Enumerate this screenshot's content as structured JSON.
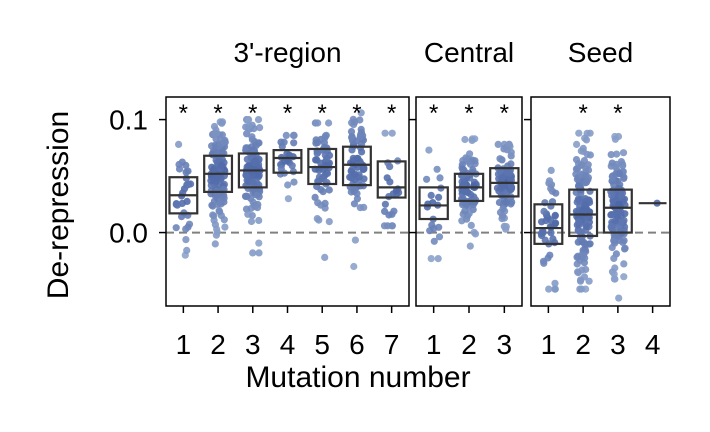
{
  "chart_data": {
    "type": "box-strip",
    "ylabel": "De-repression",
    "xlabel": "Mutation number",
    "ylim": [
      -0.065,
      0.12
    ],
    "y_ticks": [
      {
        "value": 0.0,
        "label": "0.0"
      },
      {
        "value": 0.1,
        "label": "0.1"
      }
    ],
    "reference_line": 0.0,
    "significance_marker": "*",
    "colors": {
      "point": "#4a64a6",
      "point_light": "#8ea4cc",
      "box": "#333333",
      "ref_line": "#808080"
    },
    "panels": [
      {
        "title": "3'-region",
        "groups": [
          {
            "label": "1",
            "n": 30,
            "q1": 0.017,
            "median": 0.033,
            "q3": 0.049,
            "min": -0.02,
            "max": 0.078,
            "significant": true
          },
          {
            "label": "2",
            "n": 130,
            "q1": 0.036,
            "median": 0.052,
            "q3": 0.068,
            "min": -0.01,
            "max": 0.098,
            "significant": true
          },
          {
            "label": "3",
            "n": 120,
            "q1": 0.04,
            "median": 0.055,
            "q3": 0.07,
            "min": -0.018,
            "max": 0.1,
            "significant": true
          },
          {
            "label": "4",
            "n": 25,
            "q1": 0.053,
            "median": 0.066,
            "q3": 0.073,
            "min": 0.03,
            "max": 0.086,
            "significant": true
          },
          {
            "label": "5",
            "n": 60,
            "q1": 0.043,
            "median": 0.058,
            "q3": 0.074,
            "min": -0.022,
            "max": 0.097,
            "significant": true
          },
          {
            "label": "6",
            "n": 70,
            "q1": 0.042,
            "median": 0.06,
            "q3": 0.076,
            "min": -0.03,
            "max": 0.106,
            "significant": true
          },
          {
            "label": "7",
            "n": 22,
            "q1": 0.031,
            "median": 0.04,
            "q3": 0.063,
            "min": 0.006,
            "max": 0.088,
            "significant": true
          }
        ]
      },
      {
        "title": "Central",
        "groups": [
          {
            "label": "1",
            "n": 20,
            "q1": 0.012,
            "median": 0.024,
            "q3": 0.04,
            "min": -0.023,
            "max": 0.073,
            "significant": true
          },
          {
            "label": "2",
            "n": 90,
            "q1": 0.028,
            "median": 0.04,
            "q3": 0.052,
            "min": -0.012,
            "max": 0.083,
            "significant": true
          },
          {
            "label": "3",
            "n": 90,
            "q1": 0.032,
            "median": 0.044,
            "q3": 0.057,
            "min": 0.003,
            "max": 0.078,
            "significant": true
          }
        ]
      },
      {
        "title": "Seed",
        "groups": [
          {
            "label": "1",
            "n": 40,
            "q1": -0.01,
            "median": 0.004,
            "q3": 0.025,
            "min": -0.05,
            "max": 0.055,
            "significant": false
          },
          {
            "label": "2",
            "n": 130,
            "q1": -0.003,
            "median": 0.016,
            "q3": 0.038,
            "min": -0.05,
            "max": 0.088,
            "significant": true
          },
          {
            "label": "3",
            "n": 120,
            "q1": 0.0,
            "median": 0.022,
            "q3": 0.038,
            "min": -0.058,
            "max": 0.085,
            "significant": true
          },
          {
            "label": "4",
            "n": 1,
            "q1": 0.026,
            "median": 0.026,
            "q3": 0.026,
            "min": 0.026,
            "max": 0.026,
            "significant": false
          }
        ]
      }
    ]
  }
}
